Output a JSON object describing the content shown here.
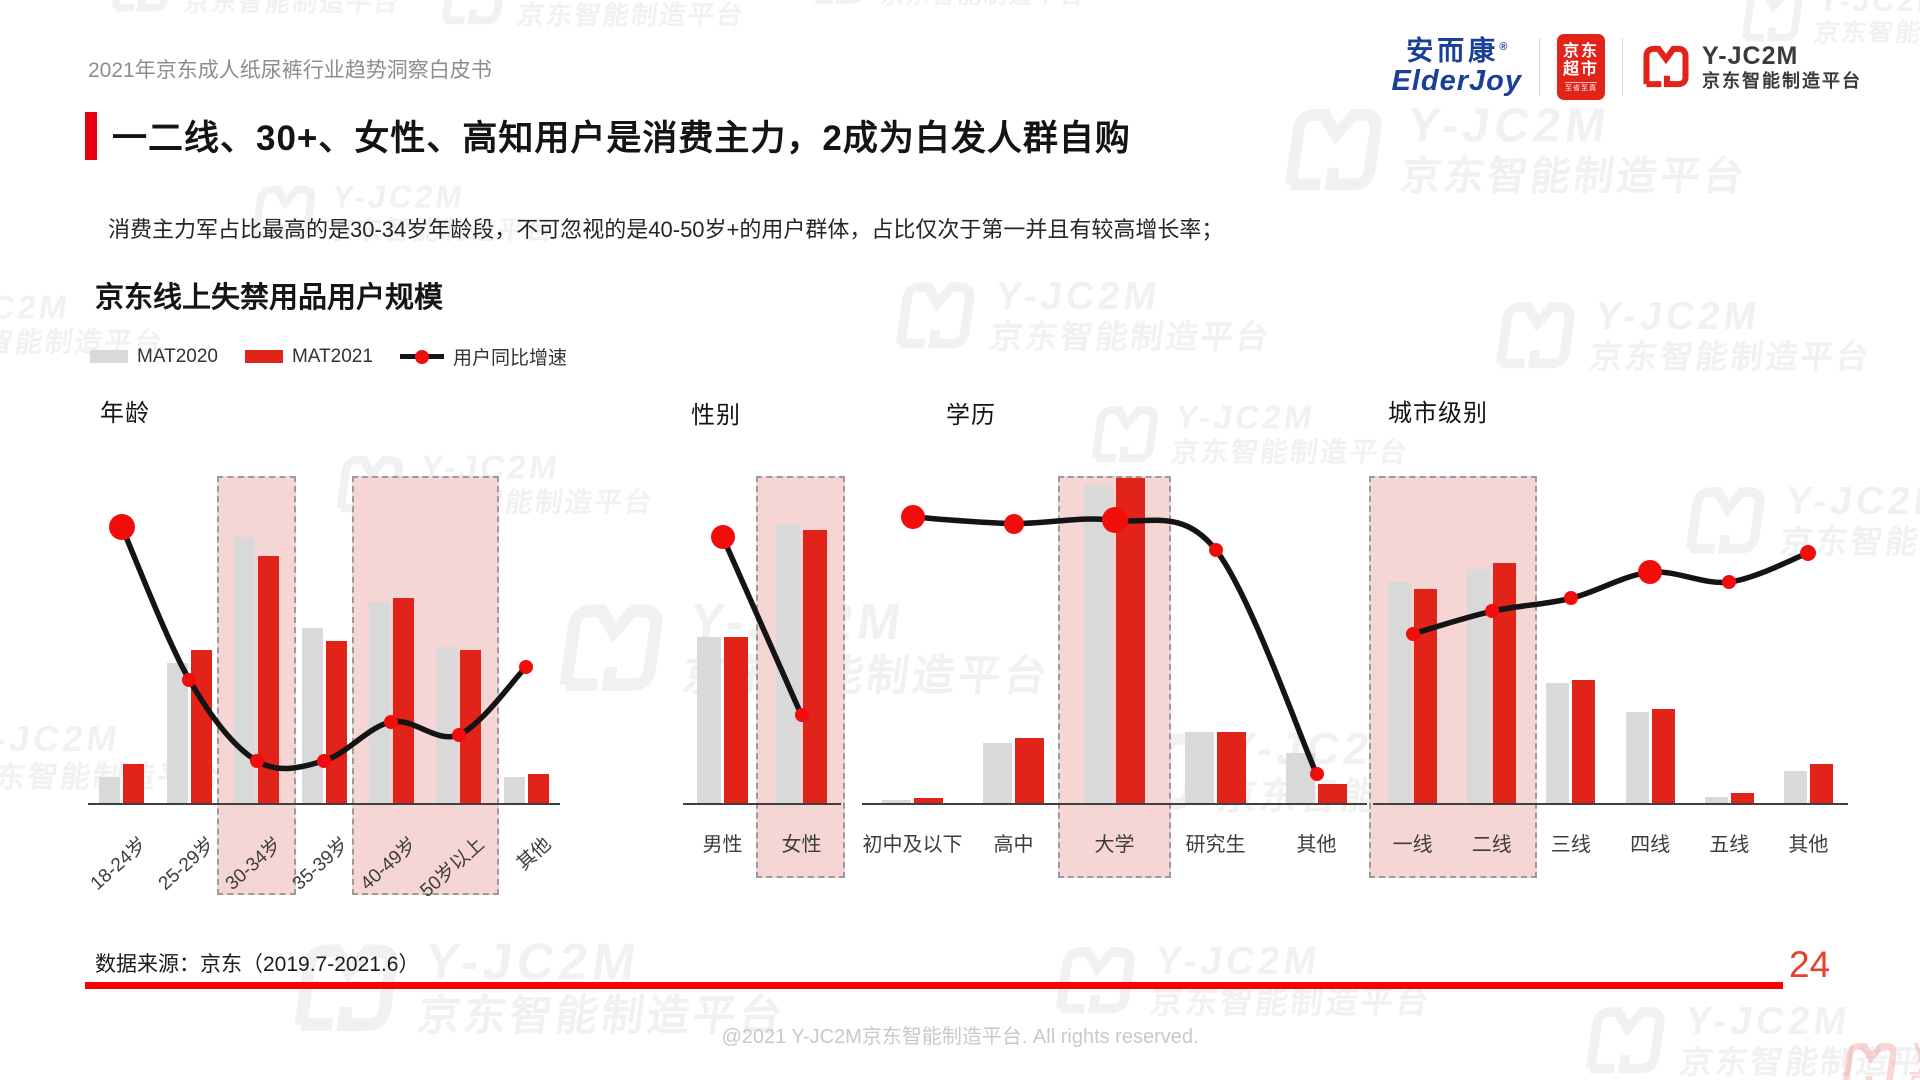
{
  "header": {
    "breadcrumb": "2021年京东成人纸尿裤行业趋势洞察白皮书",
    "logos": {
      "elderjoy_cn": "安而康",
      "elderjoy_reg": "®",
      "elderjoy_en": "ElderJoy",
      "jd_line1": "京东",
      "jd_line2": "超市",
      "jd_sub": "至省至真",
      "platform_name": "Y-JC2M",
      "platform_sub": "京东智能制造平台"
    }
  },
  "title_block": {
    "title": "一二线、30+、女性、高知用户是消费主力，2成为白发人群自购",
    "subtitle": "消费主力军占比最高的是30-34岁年龄段，不可忽视的是40-50岁+的用户群体，占比仅次于第一并且有较高增长率；"
  },
  "section": {
    "title": "京东线上失禁用品用户规模"
  },
  "legend": {
    "items": [
      {
        "label": "MAT2020",
        "type": "bar",
        "color": "#d9d9d9"
      },
      {
        "label": "MAT2021",
        "type": "bar",
        "color": "#e2231a"
      },
      {
        "label": "用户同比增速",
        "type": "line",
        "color": "#141414"
      }
    ]
  },
  "watermark": {
    "brand": "Y-JC2M",
    "text": "京东智能制造平台"
  },
  "colors": {
    "bar_gray": "#d9d9d9",
    "bar_red": "#e2231a",
    "dot_red": "#f20d0d",
    "line_black": "#141414",
    "highlight_pink": "#f6d5d5",
    "accent_red": "#e60012"
  },
  "chart_data": [
    {
      "type": "bar",
      "title": "年龄",
      "units_note": "relative height index 0-100 (source shows no numeric axis)",
      "categories": [
        "18-24岁",
        "25-29岁",
        "30-34岁",
        "35-39岁",
        "40-49岁",
        "50岁以上",
        "其他"
      ],
      "series": [
        {
          "name": "MAT2020",
          "values": [
            8,
            43,
            82,
            54,
            62,
            48,
            8
          ]
        },
        {
          "name": "MAT2021",
          "values": [
            12,
            47,
            76,
            50,
            63,
            47,
            9
          ]
        }
      ],
      "line": {
        "name": "用户同比增速",
        "values": [
          85,
          38,
          13,
          13,
          25,
          21,
          42
        ],
        "dot_radii": [
          13,
          7,
          7,
          7,
          7,
          7,
          7
        ]
      },
      "highlighted_categories": [
        [
          2,
          2
        ],
        [
          4,
          5
        ]
      ],
      "rotated_labels": true,
      "legend_position": "top-left",
      "grid": false
    },
    {
      "type": "bar",
      "title": "性别",
      "units_note": "relative height index 0-100 (source shows no numeric axis)",
      "categories": [
        "男性",
        "女性"
      ],
      "series": [
        {
          "name": "MAT2020",
          "values": [
            51,
            86
          ]
        },
        {
          "name": "MAT2021",
          "values": [
            51,
            84
          ]
        }
      ],
      "line": {
        "name": "用户同比增速",
        "values": [
          82,
          27
        ],
        "dot_radii": [
          12,
          7
        ]
      },
      "highlighted_categories": [
        [
          1,
          1
        ]
      ],
      "rotated_labels": false,
      "legend_position": "top-left",
      "grid": false
    },
    {
      "type": "bar",
      "title": "学历",
      "units_note": "relative height index 0-100 (source shows no numeric axis)",
      "categories": [
        "初中及以下",
        "高中",
        "大学",
        "研究生",
        "其他"
      ],
      "series": [
        {
          "name": "MAT2020",
          "values": [
            1,
            18.5,
            98,
            22,
            15.5
          ]
        },
        {
          "name": "MAT2021",
          "values": [
            1.5,
            20,
            100,
            22,
            6
          ]
        }
      ],
      "line": {
        "name": "用户同比增速",
        "values": [
          88,
          86,
          87,
          78,
          9
        ],
        "dot_radii": [
          12,
          10,
          13,
          7,
          7
        ]
      },
      "highlighted_categories": [
        [
          2,
          2
        ]
      ],
      "rotated_labels": false,
      "legend_position": "top-left",
      "grid": false
    },
    {
      "type": "bar",
      "title": "城市级别",
      "units_note": "relative height index 0-100 (source shows no numeric axis)",
      "categories": [
        "一线",
        "二线",
        "三线",
        "四线",
        "五线",
        "其他"
      ],
      "series": [
        {
          "name": "MAT2020",
          "values": [
            68,
            72,
            37,
            28,
            2,
            10
          ]
        },
        {
          "name": "MAT2021",
          "values": [
            66,
            74,
            38,
            29,
            3,
            12
          ]
        }
      ],
      "line": {
        "name": "用户同比增速",
        "values": [
          52,
          59,
          63,
          71,
          68,
          77
        ],
        "dot_radii": [
          7,
          7,
          7,
          12,
          7,
          8
        ]
      },
      "highlighted_categories": [
        [
          0,
          1
        ]
      ],
      "rotated_labels": false,
      "legend_position": "top-left",
      "grid": false
    }
  ],
  "footer": {
    "source": "数据来源：京东（2019.7-2021.6）",
    "page_number": "24",
    "copyright": "@2021 Y-JC2M京东智能制造平台. All rights reserved."
  }
}
